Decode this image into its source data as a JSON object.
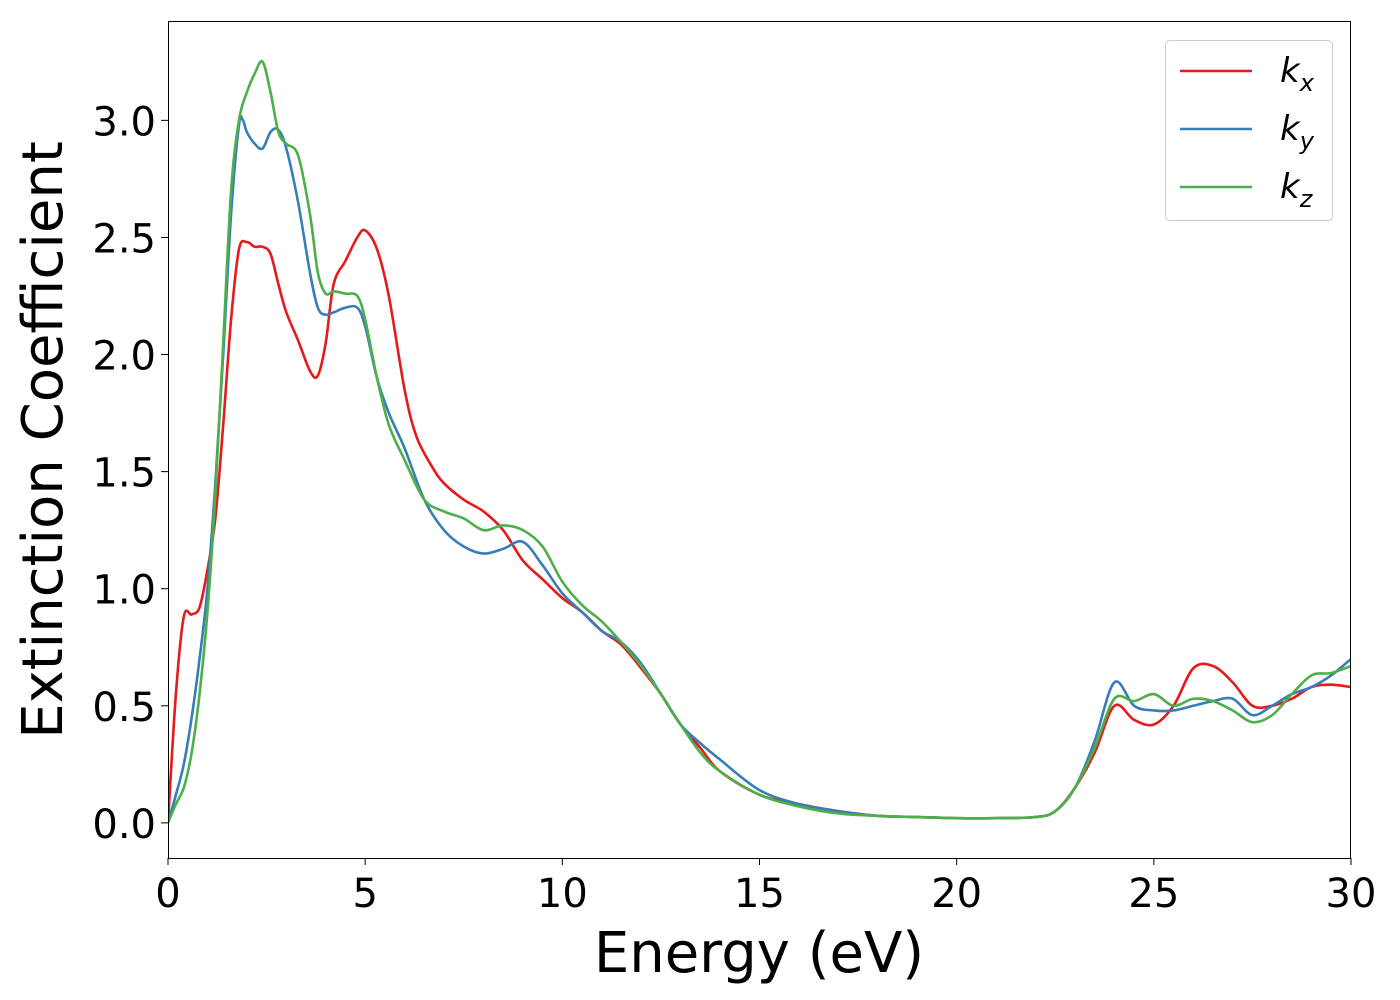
{
  "chart_data": {
    "type": "line",
    "xlabel": "Energy (eV)",
    "ylabel": "Extinction Coefficient",
    "xlim": [
      0,
      30
    ],
    "ylim": [
      -0.15,
      3.42
    ],
    "xticks": [
      0,
      5,
      10,
      15,
      20,
      25,
      30
    ],
    "yticks": [
      0.0,
      0.5,
      1.0,
      1.5,
      2.0,
      2.5,
      3.0
    ],
    "grid": false,
    "legend_position": "top-right",
    "series": [
      {
        "name": "k_x",
        "base": "k",
        "sub": "x",
        "color": "#e41a1c",
        "x": [
          0,
          0.2,
          0.4,
          0.6,
          0.8,
          1.0,
          1.2,
          1.4,
          1.6,
          1.8,
          2.0,
          2.2,
          2.4,
          2.6,
          2.8,
          3.0,
          3.3,
          3.6,
          3.8,
          4.0,
          4.2,
          4.5,
          4.8,
          5.0,
          5.3,
          5.6,
          6.0,
          6.3,
          6.7,
          7.0,
          7.5,
          8.0,
          8.5,
          9.0,
          9.5,
          10.0,
          10.5,
          11.0,
          11.5,
          12.0,
          12.5,
          13.0,
          13.5,
          14.0,
          15.0,
          16.0,
          17.0,
          18.0,
          19.0,
          20.0,
          21.0,
          22.0,
          22.5,
          23.0,
          23.5,
          24.0,
          24.5,
          25.0,
          25.5,
          26.0,
          26.5,
          27.0,
          27.5,
          28.0,
          28.5,
          29.0,
          29.5,
          30.0
        ],
        "values": [
          0.0,
          0.55,
          0.88,
          0.89,
          0.92,
          1.08,
          1.3,
          1.7,
          2.15,
          2.45,
          2.48,
          2.46,
          2.46,
          2.43,
          2.3,
          2.18,
          2.06,
          1.93,
          1.91,
          2.05,
          2.3,
          2.4,
          2.5,
          2.53,
          2.45,
          2.25,
          1.85,
          1.65,
          1.52,
          1.45,
          1.38,
          1.33,
          1.25,
          1.12,
          1.04,
          0.96,
          0.9,
          0.82,
          0.76,
          0.66,
          0.55,
          0.42,
          0.32,
          0.22,
          0.12,
          0.08,
          0.05,
          0.03,
          0.025,
          0.02,
          0.02,
          0.025,
          0.05,
          0.15,
          0.3,
          0.5,
          0.44,
          0.42,
          0.5,
          0.66,
          0.67,
          0.6,
          0.5,
          0.5,
          0.53,
          0.58,
          0.59,
          0.58
        ]
      },
      {
        "name": "k_y",
        "base": "k",
        "sub": "y",
        "color": "#377eb8",
        "x": [
          0,
          0.2,
          0.4,
          0.6,
          0.8,
          1.0,
          1.2,
          1.4,
          1.6,
          1.8,
          1.9,
          2.0,
          2.2,
          2.4,
          2.6,
          2.8,
          3.0,
          3.3,
          3.6,
          3.8,
          4.0,
          4.2,
          4.5,
          4.8,
          5.0,
          5.3,
          5.6,
          6.0,
          6.5,
          7.0,
          7.5,
          8.0,
          8.5,
          9.0,
          9.5,
          10.0,
          10.5,
          11.0,
          11.5,
          12.0,
          12.5,
          13.0,
          13.5,
          14.0,
          15.0,
          16.0,
          17.0,
          18.0,
          19.0,
          20.0,
          21.0,
          22.0,
          22.5,
          23.0,
          23.5,
          24.0,
          24.5,
          25.0,
          25.5,
          26.0,
          26.5,
          27.0,
          27.5,
          28.0,
          28.5,
          29.0,
          29.5,
          30.0
        ],
        "values": [
          0.0,
          0.12,
          0.25,
          0.45,
          0.7,
          1.0,
          1.45,
          2.0,
          2.6,
          2.98,
          3.0,
          2.95,
          2.9,
          2.88,
          2.95,
          2.96,
          2.88,
          2.65,
          2.35,
          2.2,
          2.17,
          2.18,
          2.2,
          2.2,
          2.12,
          1.9,
          1.75,
          1.6,
          1.38,
          1.25,
          1.18,
          1.15,
          1.17,
          1.2,
          1.1,
          0.98,
          0.9,
          0.82,
          0.77,
          0.68,
          0.55,
          0.42,
          0.34,
          0.27,
          0.14,
          0.08,
          0.05,
          0.03,
          0.025,
          0.02,
          0.02,
          0.025,
          0.05,
          0.15,
          0.35,
          0.6,
          0.5,
          0.48,
          0.48,
          0.5,
          0.52,
          0.53,
          0.46,
          0.5,
          0.55,
          0.58,
          0.63,
          0.7
        ]
      },
      {
        "name": "k_z",
        "base": "k",
        "sub": "z",
        "color": "#4daf4a",
        "x": [
          0,
          0.2,
          0.4,
          0.6,
          0.8,
          1.0,
          1.2,
          1.4,
          1.6,
          1.8,
          2.0,
          2.2,
          2.4,
          2.6,
          2.8,
          3.0,
          3.3,
          3.6,
          3.8,
          4.0,
          4.2,
          4.5,
          4.8,
          5.0,
          5.3,
          5.6,
          6.0,
          6.5,
          7.0,
          7.5,
          8.0,
          8.5,
          9.0,
          9.5,
          10.0,
          10.5,
          11.0,
          11.5,
          12.0,
          12.5,
          13.0,
          13.5,
          14.0,
          15.0,
          16.0,
          17.0,
          18.0,
          19.0,
          20.0,
          21.0,
          22.0,
          22.5,
          23.0,
          23.5,
          24.0,
          24.5,
          25.0,
          25.5,
          26.0,
          26.5,
          27.0,
          27.5,
          28.0,
          28.5,
          29.0,
          29.5,
          30.0
        ],
        "values": [
          0.0,
          0.08,
          0.15,
          0.3,
          0.55,
          0.9,
          1.4,
          2.05,
          2.7,
          3.0,
          3.12,
          3.2,
          3.25,
          3.12,
          2.95,
          2.9,
          2.85,
          2.6,
          2.35,
          2.26,
          2.27,
          2.26,
          2.25,
          2.15,
          1.9,
          1.7,
          1.55,
          1.38,
          1.33,
          1.3,
          1.25,
          1.27,
          1.25,
          1.18,
          1.03,
          0.93,
          0.86,
          0.77,
          0.67,
          0.55,
          0.42,
          0.3,
          0.22,
          0.12,
          0.07,
          0.04,
          0.03,
          0.025,
          0.02,
          0.02,
          0.025,
          0.05,
          0.15,
          0.32,
          0.53,
          0.52,
          0.55,
          0.5,
          0.53,
          0.52,
          0.48,
          0.43,
          0.46,
          0.55,
          0.63,
          0.64,
          0.67
        ]
      }
    ]
  }
}
